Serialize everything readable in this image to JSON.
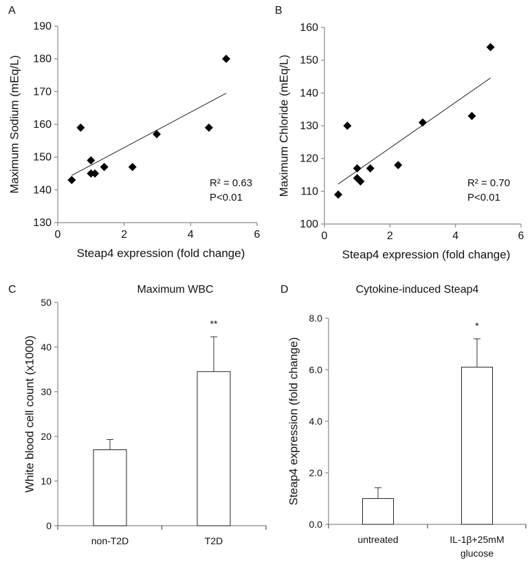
{
  "chart_data": [
    {
      "panel": "A",
      "type": "scatter",
      "title": "",
      "xlabel": "Steap4 expression  (fold change)",
      "ylabel": "Maximum  Sodium  (mEq/L)",
      "xlim": [
        0,
        6
      ],
      "ylim": [
        130,
        190
      ],
      "xticks": [
        "0",
        "2",
        "4",
        "6"
      ],
      "yticks": [
        "130",
        "140",
        "150",
        "160",
        "170",
        "180",
        "190"
      ],
      "points": [
        [
          0.42,
          143
        ],
        [
          0.69,
          159
        ],
        [
          1.0,
          149
        ],
        [
          1.0,
          145
        ],
        [
          1.12,
          145
        ],
        [
          1.4,
          147
        ],
        [
          2.25,
          147
        ],
        [
          2.98,
          157
        ],
        [
          4.55,
          159
        ],
        [
          5.07,
          180
        ]
      ],
      "trendline": [
        [
          0.42,
          144.4
        ],
        [
          5.07,
          169.5
        ]
      ],
      "annotations": [
        "R² = 0.63",
        "P<0.01"
      ]
    },
    {
      "panel": "B",
      "type": "scatter",
      "title": "",
      "xlabel": "Steap4 expression  (fold change)",
      "ylabel": "Maximum  Chloride  (mEq/L)",
      "xlim": [
        0,
        6
      ],
      "ylim": [
        100,
        160
      ],
      "xticks": [
        "0",
        "2",
        "4",
        "6"
      ],
      "yticks": [
        "100",
        "110",
        "120",
        "130",
        "140",
        "150",
        "160"
      ],
      "points": [
        [
          0.42,
          109
        ],
        [
          0.7,
          130
        ],
        [
          1.0,
          117
        ],
        [
          1.0,
          114
        ],
        [
          1.1,
          113
        ],
        [
          1.4,
          117
        ],
        [
          2.25,
          118
        ],
        [
          3.0,
          131
        ],
        [
          4.5,
          133
        ],
        [
          5.07,
          154
        ]
      ],
      "trendline": [
        [
          0.42,
          112.2
        ],
        [
          5.07,
          144.6
        ]
      ],
      "annotations": [
        "R² = 0.70",
        "P<0.01"
      ]
    },
    {
      "panel": "C",
      "type": "bar",
      "title": "Maximum  WBC",
      "xlabel": "",
      "ylabel": "White blood cell count  (x1000)",
      "ylim": [
        0,
        50
      ],
      "yticks": [
        "0",
        "10",
        "20",
        "30",
        "40",
        "50"
      ],
      "categories": [
        "non-T2D",
        "T2D"
      ],
      "values": [
        17,
        34.5
      ],
      "errors": [
        2.3,
        7.8
      ],
      "significance": [
        "",
        "**"
      ]
    },
    {
      "panel": "D",
      "type": "bar",
      "title": "Cytokine-induced  Steap4",
      "xlabel": "",
      "ylabel": "Steap4 expression  (fold change)",
      "ylim": [
        0,
        8
      ],
      "yticks": [
        "0.0",
        "2.0",
        "4.0",
        "6.0",
        "8.0"
      ],
      "categories": [
        "untreated",
        "IL-1β+25mM glucose"
      ],
      "category_lines": [
        [
          "untreated"
        ],
        [
          "IL-1β+25mM",
          "glucose"
        ]
      ],
      "values": [
        1.0,
        6.1
      ],
      "errors": [
        0.42,
        1.1
      ],
      "significance": [
        "",
        "*"
      ]
    }
  ]
}
